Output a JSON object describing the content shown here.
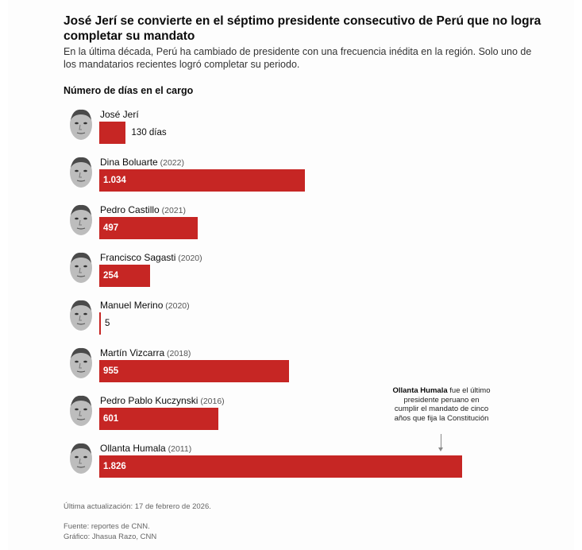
{
  "title": "José Jerí se convierte en el séptimo presidente consecutivo de Perú que no logra completar su mandato",
  "subtitle": "En la última década, Perú ha cambiado de presidente con una frecuencia inédita en la región. Solo uno de los mandatarios recientes logró completar su periodo.",
  "section_label": "Número de días en el cargo",
  "annotation": {
    "bold": "Ollanta Humala",
    "text": " fue el último presidente peruano en cumplir el mandato de cinco años que fija la Constitución"
  },
  "footer": {
    "updated": "Última actualización: 17 de febrero de 2026.",
    "source": "Fuente: reportes de CNN.",
    "credit": "Gráfico: Jhasua Razo, CNN"
  },
  "colors": {
    "bar": "#c62624"
  },
  "chart_data": {
    "type": "bar",
    "orientation": "horizontal",
    "title": "José Jerí se convierte en el séptimo presidente consecutivo de Perú que no logra completar su mandato",
    "xlabel": "Número de días en el cargo",
    "ylabel": "",
    "xlim": [
      0,
      1826
    ],
    "grid": false,
    "categories": [
      "José Jerí",
      "Dina Boluarte",
      "Pedro Castillo",
      "Francisco Sagasti",
      "Manuel Merino",
      "Martín Vizcarra",
      "Pedro Pablo Kuczynski",
      "Ollanta Humala"
    ],
    "years": [
      "",
      "(2022)",
      "(2021)",
      "(2020)",
      "(2020)",
      "(2018)",
      "(2016)",
      "(2011)"
    ],
    "values": [
      130,
      1034,
      497,
      254,
      5,
      955,
      601,
      1826
    ],
    "labels": [
      "130 días",
      "1.034",
      "497",
      "254",
      "5",
      "955",
      "601",
      "1.826"
    ],
    "label_position": [
      "outside",
      "inside",
      "inside",
      "inside",
      "outside",
      "inside",
      "inside",
      "inside"
    ]
  }
}
